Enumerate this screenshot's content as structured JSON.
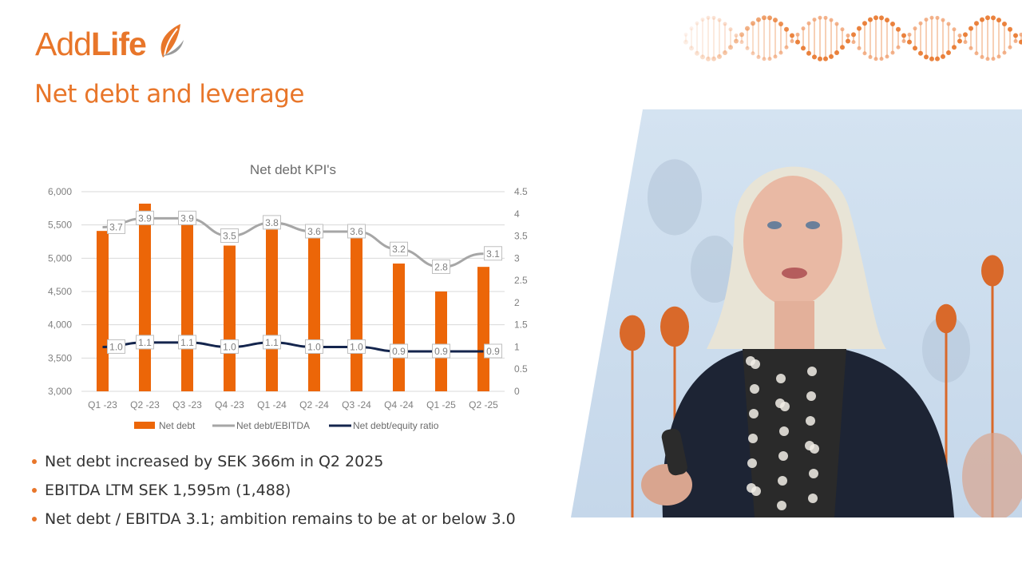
{
  "brand": {
    "logo_part1": "Add",
    "logo_part2": "Life",
    "accent": "#e8762a",
    "logo_icon": "leaf-logo-icon"
  },
  "slide": {
    "title": "Net debt and leverage"
  },
  "decor": {
    "dna_graphic": "dna-helix-icon",
    "presenter_video": "presenter-video-feed"
  },
  "bullets": [
    "Net debt increased by SEK 366m in Q2 2025",
    "EBITDA LTM SEK 1,595m (1,488)",
    "Net debt / EBITDA 3.1; ambition remains to be at or below 3.0"
  ],
  "chart_data": {
    "type": "bar",
    "title": "Net debt KPI's",
    "categories": [
      "Q1 -23",
      "Q2 -23",
      "Q3 -23",
      "Q4 -23",
      "Q1 -24",
      "Q2 -24",
      "Q3 -24",
      "Q4 -24",
      "Q1 -25",
      "Q2 -25"
    ],
    "series": [
      {
        "name": "Net debt",
        "type": "bar",
        "axis": "left",
        "color": "#ec6608",
        "values": [
          5410,
          5820,
          5580,
          5190,
          5430,
          5320,
          5350,
          4920,
          4500,
          4870
        ]
      },
      {
        "name": "Net debt/EBITDA",
        "type": "line",
        "axis": "right",
        "color": "#a6a6a6",
        "values": [
          3.7,
          3.9,
          3.9,
          3.5,
          3.8,
          3.6,
          3.6,
          3.2,
          2.8,
          3.1
        ],
        "labels": [
          "3.7",
          "3.9",
          "3.9",
          "3.5",
          "3.8",
          "3.6",
          "3.6",
          "3.2",
          "2.8",
          "3.1"
        ]
      },
      {
        "name": "Net debt/equity ratio",
        "type": "line",
        "axis": "right",
        "color": "#14254d",
        "values": [
          1.0,
          1.1,
          1.1,
          1.0,
          1.1,
          1.0,
          1.0,
          0.9,
          0.9,
          0.9
        ],
        "labels": [
          "1.0",
          "1.1",
          "1.1",
          "1.0",
          "1.1",
          "1.0",
          "1.0",
          "0.9",
          "0.9",
          "0.9"
        ]
      }
    ],
    "y_left": {
      "ylim": [
        3000,
        6000
      ],
      "ticks": [
        "3,000",
        "3,500",
        "4,000",
        "4,500",
        "5,000",
        "5,500",
        "6,000"
      ]
    },
    "y_right": {
      "ylim": [
        0,
        4.5
      ],
      "ticks": [
        "0",
        "0.5",
        "1",
        "1.5",
        "2",
        "2.5",
        "3",
        "3.5",
        "4",
        "4.5"
      ]
    },
    "grid": true,
    "legend_position": "bottom"
  }
}
